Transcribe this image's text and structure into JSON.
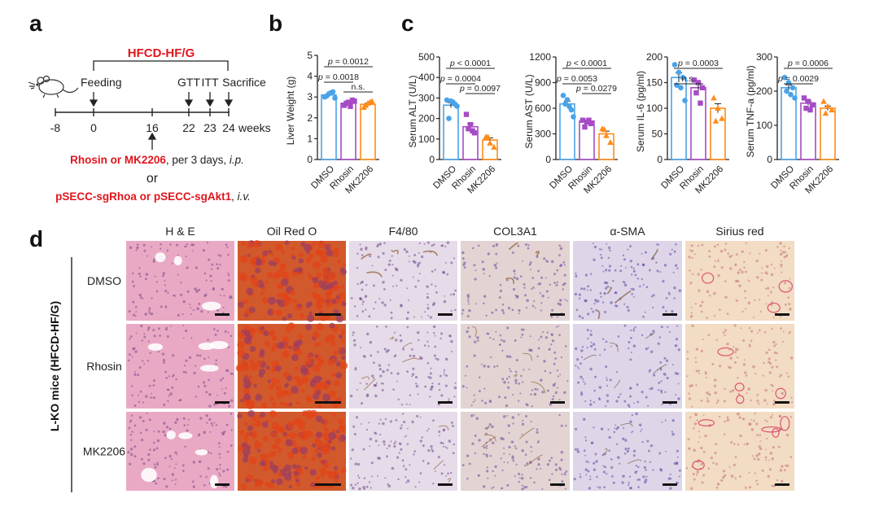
{
  "panel_letters": {
    "a": "a",
    "b": "b",
    "c": "c",
    "d": "d"
  },
  "colors": {
    "red": "#e0161d",
    "dmso": "#4aa3e8",
    "rhosin": "#a64bc6",
    "mk2206": "#ff8c1a"
  },
  "panel_a": {
    "diet_label": "HFCD-HF/G",
    "feeding_label": "Feeding",
    "gtt_label": "GTT",
    "itt_label": "ITT",
    "sacrifice_label": "Sacrifice",
    "timeline_ticks": [
      "-8",
      "0",
      "16",
      "22",
      "23",
      "24"
    ],
    "weeks_label": "weeks",
    "treatment_drugs": "Rhosin or MK2206",
    "treatment_schedule": ", per 3 days, ",
    "treatment_route": "i.p.",
    "or_label": "or",
    "vectors": "pSECC-sgRhoa or pSECC-sgAkt1",
    "vectors_sep": ", ",
    "vectors_route": "i.v.",
    "mouse_icon": "mouse-icon"
  },
  "chart_data": [
    {
      "id": "liver-weight",
      "type": "bar",
      "categories": [
        "DMSO",
        "Rhosin",
        "MK2206"
      ],
      "values": [
        3.1,
        2.7,
        2.65
      ],
      "points": [
        [
          3.0,
          3.15,
          3.25,
          3.05,
          3.2,
          2.95
        ],
        [
          2.6,
          2.75,
          2.85,
          2.7,
          2.55,
          2.8
        ],
        [
          2.5,
          2.7,
          2.8,
          2.6,
          2.75
        ]
      ],
      "ylabel": "Liver Weight (g)",
      "ylim": [
        0,
        5
      ],
      "yticks": [
        "0",
        "1",
        "2",
        "3",
        "4",
        "5"
      ],
      "comparisons": [
        {
          "from": 0,
          "to": 2,
          "label": "p = 0.0012"
        },
        {
          "from": 0,
          "to": 1,
          "label": "p = 0.0018"
        },
        {
          "from": 1,
          "to": 2,
          "label": "n.s."
        }
      ]
    },
    {
      "id": "serum-alt",
      "type": "bar",
      "categories": [
        "DMSO",
        "Rhosin",
        "MK2206"
      ],
      "values": [
        265,
        160,
        95
      ],
      "points": [
        [
          290,
          285,
          270,
          200,
          280,
          260
        ],
        [
          220,
          170,
          130,
          150,
          140
        ],
        [
          110,
          80,
          60,
          110
        ]
      ],
      "ylabel": "Serum ALT (U/L)",
      "ylim": [
        0,
        500
      ],
      "yticks": [
        "0",
        "100",
        "200",
        "300",
        "400",
        "500"
      ],
      "comparisons": [
        {
          "from": 0,
          "to": 2,
          "label": "p < 0.0001"
        },
        {
          "from": 0,
          "to": 1,
          "label": "p = 0.0004"
        },
        {
          "from": 1,
          "to": 2,
          "label": "p = 0.0097"
        }
      ]
    },
    {
      "id": "serum-ast",
      "type": "bar",
      "categories": [
        "DMSO",
        "Rhosin",
        "MK2206"
      ],
      "values": [
        650,
        450,
        300
      ],
      "points": [
        [
          750,
          700,
          580,
          650,
          620,
          500
        ],
        [
          460,
          440,
          420,
          380,
          460
        ],
        [
          360,
          280,
          200,
          350
        ]
      ],
      "ylabel": "Serum AST (U/L)",
      "ylim": [
        0,
        1200
      ],
      "yticks": [
        "0",
        "300",
        "600",
        "900",
        "1200"
      ],
      "comparisons": [
        {
          "from": 0,
          "to": 2,
          "label": "p < 0.0001"
        },
        {
          "from": 0,
          "to": 1,
          "label": "p = 0.0053"
        },
        {
          "from": 1,
          "to": 2,
          "label": "p = 0.0279"
        }
      ]
    },
    {
      "id": "serum-il6",
      "type": "bar",
      "categories": [
        "DMSO",
        "Rhosin",
        "MK2206"
      ],
      "values": [
        160,
        140,
        100
      ],
      "points": [
        [
          185,
          170,
          160,
          145,
          140,
          115
        ],
        [
          155,
          150,
          140,
          130,
          110
        ],
        [
          120,
          100,
          80,
          75
        ]
      ],
      "ylabel": "Serum IL-6 (pg/ml)",
      "ylim": [
        0,
        200
      ],
      "yticks": [
        "0",
        "50",
        "100",
        "150",
        "200"
      ],
      "comparisons": [
        {
          "from": 0,
          "to": 2,
          "label": "p = 0.0003"
        },
        {
          "from": 0,
          "to": 1,
          "label": "n.s."
        }
      ]
    },
    {
      "id": "serum-tnfa",
      "type": "bar",
      "categories": [
        "DMSO",
        "Rhosin",
        "MK2206"
      ],
      "values": [
        210,
        165,
        150
      ],
      "points": [
        [
          240,
          225,
          210,
          200,
          190,
          180
        ],
        [
          180,
          170,
          160,
          150,
          145
        ],
        [
          170,
          155,
          145,
          135
        ]
      ],
      "ylabel": "Serum TNF-a (pg/ml)",
      "ylim": [
        0,
        300
      ],
      "yticks": [
        "0",
        "100",
        "200",
        "300"
      ],
      "comparisons": [
        {
          "from": 0,
          "to": 2,
          "label": "p = 0.0006"
        },
        {
          "from": 0,
          "to": 1,
          "label": "p = 0.0029"
        }
      ]
    }
  ],
  "panel_d": {
    "group_label": "L-KO mice (HFCD-HF/G)",
    "columns": [
      "H & E",
      "Oil Red O",
      "F4/80",
      "COL3A1",
      "α-SMA",
      "Sirius red"
    ],
    "rows": [
      "DMSO",
      "Rhosin",
      "MK2206"
    ],
    "stain_colors": [
      "#e9a9c4",
      "#d2592b",
      "#e6dbe8",
      "#e3d3d3",
      "#ded5e8",
      "#f2dcc3"
    ]
  }
}
